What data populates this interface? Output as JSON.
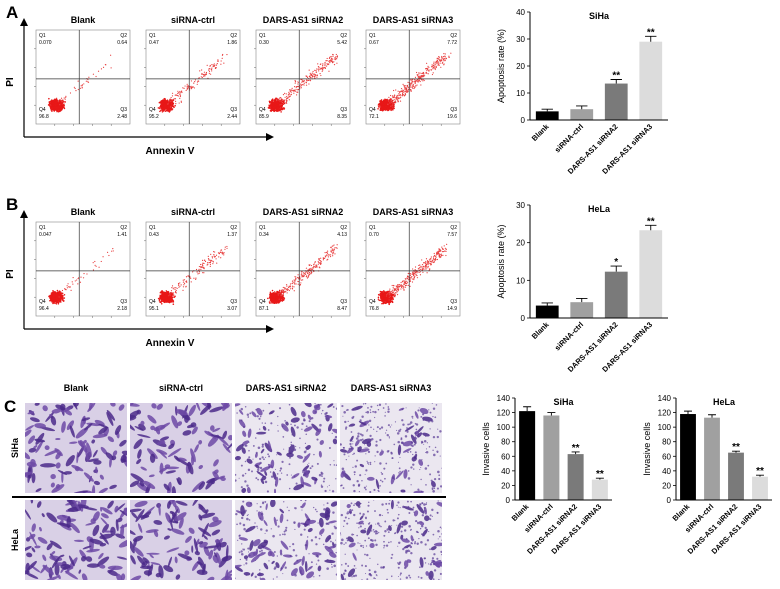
{
  "flow_rows": [
    {
      "label": "A",
      "y_label": "PI",
      "x_label": "Annexin V",
      "plots": [
        {
          "title": "Blank",
          "quadrants": [
            "0.070",
            "0.64",
            "2.48",
            "96.8"
          ]
        },
        {
          "title": "siRNA-ctrl",
          "quadrants": [
            "0.47",
            "1.86",
            "2.44",
            "95.2"
          ]
        },
        {
          "title": "DARS-AS1 siRNA2",
          "quadrants": [
            "0.30",
            "5.42",
            "8.35",
            "85.9"
          ]
        },
        {
          "title": "DARS-AS1 siRNA3",
          "quadrants": [
            "0.67",
            "7.72",
            "19.6",
            "72.1"
          ]
        }
      ]
    },
    {
      "label": "B",
      "y_label": "PI",
      "x_label": "Annexin V",
      "plots": [
        {
          "title": "Blank",
          "quadrants": [
            "0.047",
            "1.41",
            "2.18",
            "96.4"
          ]
        },
        {
          "title": "siRNA-ctrl",
          "quadrants": [
            "0.43",
            "1.37",
            "3.07",
            "95.1"
          ]
        },
        {
          "title": "DARS-AS1 siRNA2",
          "quadrants": [
            "0.34",
            "4.13",
            "8.47",
            "87.1"
          ]
        },
        {
          "title": "DARS-AS1 siRNA3",
          "quadrants": [
            "0.70",
            "7.57",
            "14.9",
            "76.8"
          ]
        }
      ]
    }
  ],
  "quadrant_labels": [
    "Q1",
    "Q2",
    "Q3",
    "Q4"
  ],
  "invasion": {
    "label": "C",
    "columns": [
      "Blank",
      "siRNA-ctrl",
      "DARS-AS1 siRNA2",
      "DARS-AS1 siRNA3"
    ],
    "rows": [
      "SiHa",
      "HeLa"
    ]
  },
  "chart_data": [
    {
      "type": "bar",
      "title": "SiHa",
      "y_label": "Apoptosis rate (%)",
      "categories": [
        "Blank",
        "siRNA-ctrl",
        "DARS-AS1 siRNA2",
        "DARS-AS1 siRNA3"
      ],
      "values": [
        3.2,
        4,
        13.5,
        29
      ],
      "errors": [
        0.8,
        1.2,
        1.5,
        2
      ],
      "annotations": [
        null,
        null,
        "**",
        "**"
      ],
      "colors": [
        "#000000",
        "#a0a0a0",
        "#7a7a7a",
        "#dcdcdc"
      ],
      "ylim": [
        0,
        40
      ],
      "yticks": [
        0,
        10,
        20,
        30,
        40
      ]
    },
    {
      "type": "bar",
      "title": "HeLa",
      "y_label": "Apoptosis rate (%)",
      "categories": [
        "Blank",
        "siRNA-ctrl",
        "DARS-AS1 siRNA2",
        "DARS-AS1 siRNA3"
      ],
      "values": [
        3.3,
        4.2,
        12.3,
        23.3
      ],
      "errors": [
        0.7,
        1,
        1.5,
        1.3
      ],
      "annotations": [
        null,
        null,
        "*",
        "**"
      ],
      "colors": [
        "#000000",
        "#a0a0a0",
        "#7a7a7a",
        "#dcdcdc"
      ],
      "ylim": [
        0,
        30
      ],
      "yticks": [
        0,
        10,
        20,
        30
      ]
    },
    {
      "type": "bar",
      "title": "SiHa",
      "y_label": "Invasive cells",
      "categories": [
        "Blank",
        "siRNA-ctrl",
        "DARS-AS1 siRNA2",
        "DARS-AS1 siRNA3"
      ],
      "values": [
        122,
        116,
        63,
        28
      ],
      "errors": [
        6,
        4,
        3,
        2
      ],
      "annotations": [
        null,
        null,
        "**",
        "**"
      ],
      "colors": [
        "#000000",
        "#a0a0a0",
        "#7a7a7a",
        "#dcdcdc"
      ],
      "ylim": [
        0,
        140
      ],
      "yticks": [
        0,
        20,
        40,
        60,
        80,
        100,
        120,
        140
      ]
    },
    {
      "type": "bar",
      "title": "HeLa",
      "y_label": "Invasive cells",
      "categories": [
        "Blank",
        "siRNA-ctrl",
        "DARS-AS1 siRNA2",
        "DARS-AS1 siRNA3"
      ],
      "values": [
        118,
        113,
        65,
        32
      ],
      "errors": [
        4,
        4,
        2,
        2
      ],
      "annotations": [
        null,
        null,
        "**",
        "**"
      ],
      "colors": [
        "#000000",
        "#a0a0a0",
        "#7a7a7a",
        "#dcdcdc"
      ],
      "ylim": [
        0,
        140
      ],
      "yticks": [
        0,
        20,
        40,
        60,
        80,
        100,
        120,
        140
      ]
    }
  ]
}
